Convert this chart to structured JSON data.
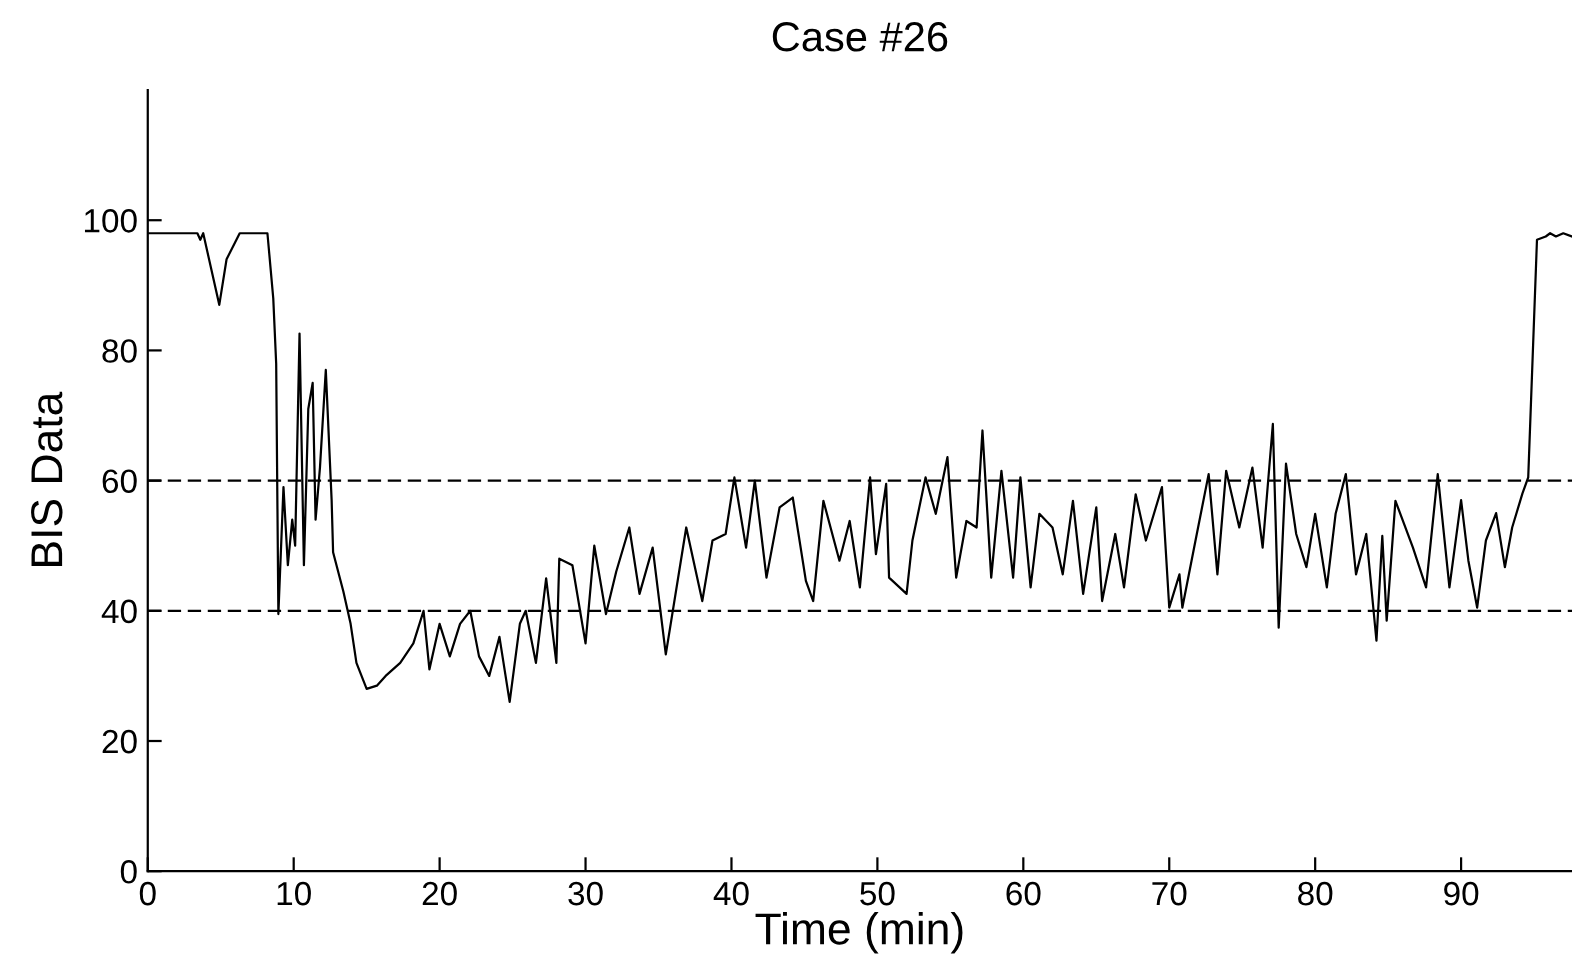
{
  "chart_data": {
    "type": "line",
    "title": "Case #26",
    "xlabel": "Time (min)",
    "ylabel": "BIS Data",
    "xlim": [
      0,
      97.6
    ],
    "xticks": [
      0,
      10,
      20,
      30,
      40,
      50,
      60,
      70,
      80,
      90
    ],
    "ylim": [
      0,
      120
    ],
    "yticks": [
      0,
      20,
      40,
      60,
      80,
      100
    ],
    "grid": false,
    "legend": false,
    "marker": "none",
    "line_style": "solid",
    "ref_lines": [
      {
        "axis": "y",
        "value": 40,
        "color": "#000000",
        "line_style": "dashed"
      },
      {
        "axis": "y",
        "value": 60,
        "color": "#000000",
        "line_style": "dashed"
      }
    ],
    "series": [
      {
        "color": "#000000",
        "x": [
          0,
          3.4,
          3.6,
          3.8,
          4.9,
          5.4,
          6.3,
          8.2,
          8.6,
          8.8,
          8.95,
          9.3,
          9.6,
          9.9,
          10.1,
          10.4,
          10.7,
          11.0,
          11.3,
          11.5,
          11.8,
          12.2,
          12.6,
          12.7,
          13.4,
          13.9,
          14.3,
          15.0,
          15.7,
          16.3,
          17.3,
          18.2,
          18.9,
          19.3,
          20.0,
          20.7,
          21.4,
          22.1,
          22.7,
          23.4,
          24.1,
          24.8,
          25.5,
          25.9,
          26.6,
          27.3,
          28.0,
          28.2,
          29.1,
          30.0,
          30.6,
          31.4,
          32.1,
          33.0,
          33.7,
          34.6,
          35.5,
          36.9,
          38.0,
          38.7,
          39.6,
          40.2,
          41.0,
          41.6,
          42.4,
          43.3,
          44.2,
          45.1,
          45.6,
          46.3,
          47.4,
          48.1,
          48.8,
          49.5,
          49.9,
          50.6,
          50.8,
          52.0,
          52.4,
          53.3,
          54.0,
          54.8,
          55.4,
          56.1,
          56.8,
          57.2,
          57.8,
          58.5,
          59.3,
          59.8,
          60.5,
          61.1,
          62.0,
          62.7,
          63.4,
          64.1,
          65.0,
          65.4,
          66.3,
          66.9,
          67.7,
          68.4,
          69.5,
          70.0,
          70.7,
          70.9,
          71.8,
          72.7,
          73.3,
          73.9,
          74.8,
          75.7,
          76.4,
          77.1,
          77.5,
          78.0,
          78.7,
          79.4,
          80.0,
          80.8,
          81.4,
          82.1,
          82.8,
          83.5,
          84.2,
          84.6,
          84.9,
          85.5,
          86.7,
          87.6,
          88.4,
          89.2,
          90.0,
          90.5,
          91.1,
          91.7,
          92.4,
          93.0,
          93.5,
          94.2,
          94.6,
          95.2,
          95.8,
          96.1,
          96.5,
          97.0,
          97.6
        ],
        "values": [
          98,
          98,
          97,
          98,
          87,
          94,
          98,
          98,
          88,
          78,
          39.5,
          59,
          47,
          54,
          50,
          82.6,
          47,
          71,
          75,
          54,
          62,
          77,
          57,
          49,
          43,
          38,
          32,
          28,
          28.5,
          30,
          32,
          35,
          40,
          31,
          38,
          33,
          38,
          40,
          33,
          30,
          36,
          26,
          38,
          40,
          32,
          45,
          32,
          48,
          47,
          35,
          50,
          39.5,
          46,
          52.8,
          42.6,
          49.7,
          33.3,
          52.8,
          41.5,
          50.8,
          51.8,
          60.5,
          49.7,
          60,
          45.1,
          55.9,
          57.4,
          44.6,
          41.5,
          56.9,
          47.7,
          53.8,
          43.6,
          60.5,
          48.7,
          59.5,
          45.1,
          42.6,
          50.8,
          60.5,
          54.9,
          63.6,
          45.1,
          53.8,
          52.8,
          67.7,
          45.1,
          61.5,
          45.1,
          60.5,
          43.6,
          54.9,
          52.8,
          45.6,
          56.9,
          42.6,
          55.9,
          41.5,
          51.8,
          43.6,
          57.9,
          50.8,
          59,
          40.5,
          45.6,
          40.5,
          50.8,
          61,
          45.6,
          61.5,
          52.8,
          62,
          49.7,
          68.7,
          37.4,
          62.6,
          51.8,
          46.7,
          54.9,
          43.6,
          54.9,
          61,
          45.6,
          51.8,
          35.4,
          51.5,
          38.5,
          56.9,
          49.7,
          43.6,
          61,
          43.6,
          57,
          47.7,
          40.5,
          50.8,
          55,
          46.7,
          52.8,
          58,
          60.5,
          97,
          97.5,
          98,
          97.5,
          98,
          97.5
        ]
      }
    ]
  }
}
